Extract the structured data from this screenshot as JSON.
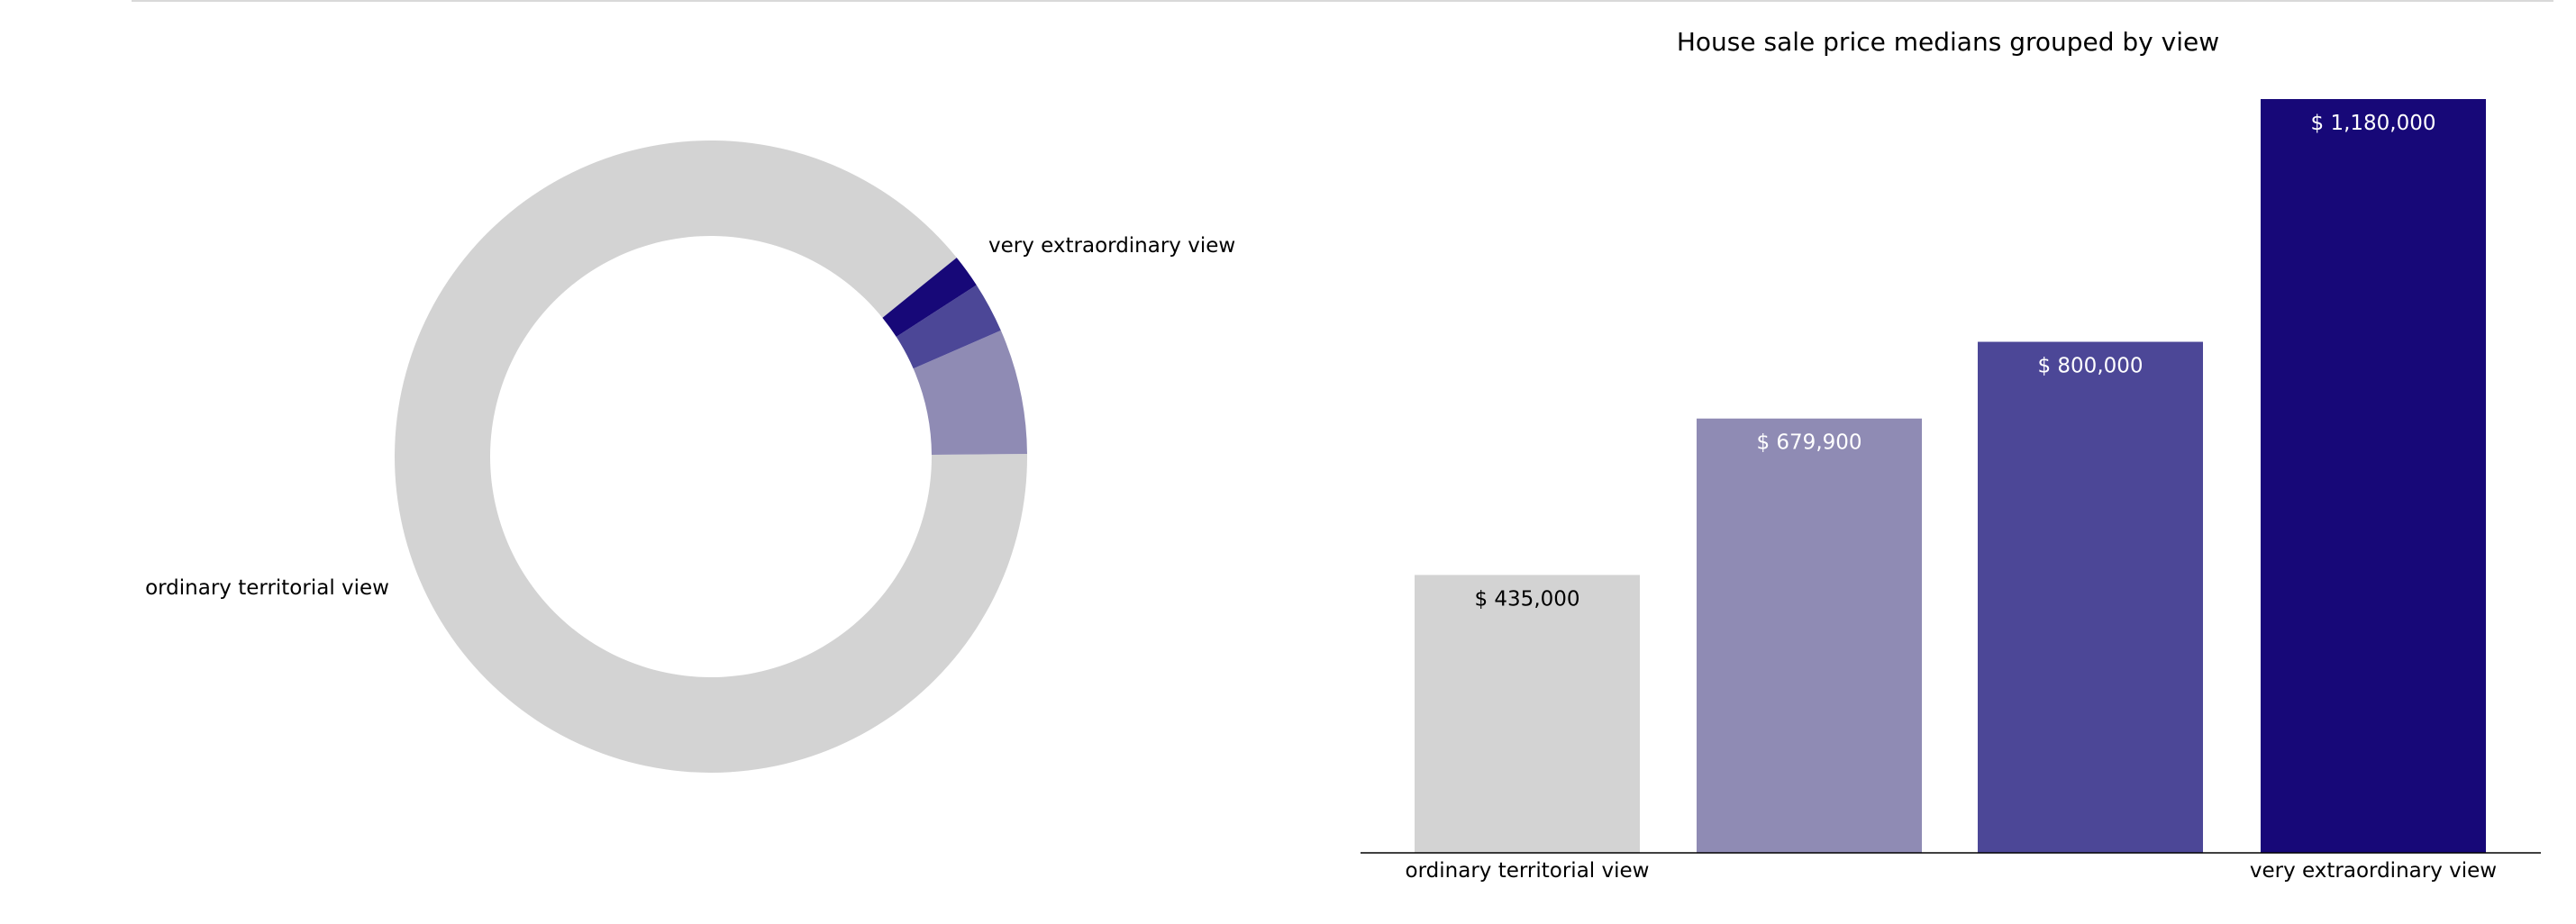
{
  "chart_data": [
    {
      "type": "pie",
      "style": "donut",
      "title": "",
      "categories": [
        "ordinary territorial view",
        "",
        "",
        "very extraordinary view"
      ],
      "values": [
        89.3,
        6.4,
        2.6,
        1.7
      ],
      "colors": [
        "#d3d3d3",
        "#8f8bb4",
        "#4c4797",
        "#170878"
      ],
      "labels_shown": [
        "ordinary territorial view",
        "very extraordinary view"
      ]
    },
    {
      "type": "bar",
      "title": "House sale price medians grouped by view",
      "categories": [
        "ordinary territorial view",
        "",
        "",
        "very extraordinary view"
      ],
      "values": [
        435000,
        679900,
        800000,
        1180000
      ],
      "value_labels": [
        "$ 435,000",
        "$ 679,900",
        "$ 800,000",
        "$ 1,180,000"
      ],
      "colors": [
        "#d3d3d3",
        "#8f8bb4",
        "#4c4797",
        "#170878"
      ],
      "label_colors": [
        "#000000",
        "#ffffff",
        "#ffffff",
        "#ffffff"
      ],
      "ylim": [
        0,
        1180000
      ],
      "grid": false,
      "xlabel": "",
      "ylabel": ""
    }
  ]
}
